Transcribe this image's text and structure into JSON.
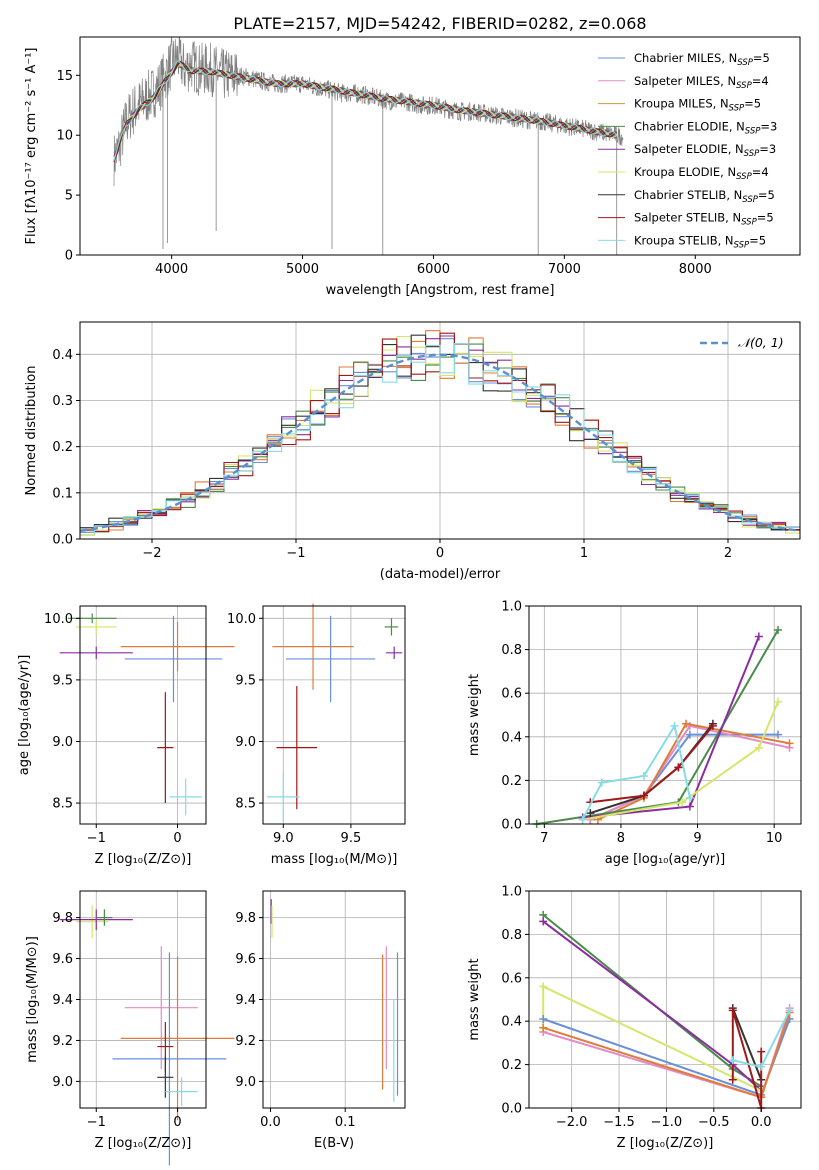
{
  "title": "PLATE=2157, MJD=54242, FIBERID=0282, z=0.068",
  "chart_data": [
    {
      "type": "line",
      "id": "spectrum",
      "xlabel": "wavelength [Angstrom, rest frame]",
      "ylabel": "Flux [fλ10⁻¹⁷ erg cm⁻² s⁻¹ A⁻¹]",
      "xlim": [
        3300,
        8800
      ],
      "ylim": [
        0,
        18.2
      ],
      "x_ticks": [
        4000,
        5000,
        6000,
        7000,
        8000
      ],
      "y_ticks": [
        0,
        5,
        10,
        15
      ],
      "grid": false,
      "legend_position": "top-right",
      "data_series": {
        "name": "data",
        "color": "#808080",
        "x": [
          3560,
          3600,
          3650,
          3700,
          3750,
          3800,
          3850,
          3900,
          3950,
          4000,
          4050,
          4100,
          4150,
          4200,
          4300,
          4400,
          4500,
          4600,
          4700,
          4800,
          4900,
          5000,
          5100,
          5200,
          5300,
          5400,
          5500,
          5600,
          5700,
          5800,
          5900,
          6000,
          6100,
          6200,
          6300,
          6400,
          6500,
          6600,
          6700,
          6800,
          6900,
          7000,
          7100,
          7200,
          7300,
          7400,
          7450
        ],
        "y": [
          8.0,
          9.0,
          11.0,
          12.0,
          12.5,
          13.0,
          13.5,
          14.0,
          15.0,
          16.0,
          16.5,
          15.5,
          16.0,
          15.5,
          15.5,
          15.0,
          15.0,
          14.8,
          14.5,
          14.3,
          14.3,
          14.3,
          14.0,
          13.8,
          13.5,
          13.5,
          13.3,
          13.0,
          12.8,
          12.8,
          12.5,
          12.5,
          12.2,
          12.0,
          12.0,
          11.8,
          11.6,
          11.5,
          11.3,
          11.2,
          11.0,
          10.8,
          10.6,
          10.4,
          10.2,
          10.0,
          9.9
        ]
      },
      "models_x": [
        3560,
        3650,
        3750,
        3850,
        3950,
        4050,
        4150,
        4300,
        4450,
        4600,
        4800,
        5000,
        5200,
        5400,
        5600,
        5800,
        6000,
        6200,
        6400,
        6600,
        6800,
        7000,
        7200,
        7400
      ],
      "models_y": [
        8.0,
        10.8,
        12.2,
        13.0,
        14.5,
        16.0,
        15.4,
        15.3,
        15.0,
        14.7,
        14.3,
        14.3,
        13.9,
        13.5,
        13.1,
        12.8,
        12.5,
        12.1,
        11.8,
        11.5,
        11.2,
        10.8,
        10.4,
        10.0
      ],
      "series": [
        {
          "name": "Chabrier MILES, N",
          "sub": "SSP",
          "suffix": "=5",
          "color": "#6a8fd8"
        },
        {
          "name": "Salpeter MILES, N",
          "sub": "SSP",
          "suffix": "=4",
          "color": "#e38bc7"
        },
        {
          "name": "Kroupa MILES, N",
          "sub": "SSP",
          "suffix": "=5",
          "color": "#c89a3c"
        },
        {
          "name": "Chabrier ELODIE, N",
          "sub": "SSP",
          "suffix": "=3",
          "color": "#4b8b4b"
        },
        {
          "name": "Salpeter ELODIE, N",
          "sub": "SSP",
          "suffix": "=3",
          "color": "#8b2ca0"
        },
        {
          "name": "Kroupa ELODIE, N",
          "sub": "SSP",
          "suffix": "=4",
          "color": "#d5e66a"
        },
        {
          "name": "Chabrier STELIB, N",
          "sub": "SSP",
          "suffix": "=5",
          "color": "#333333"
        },
        {
          "name": "Salpeter STELIB, N",
          "sub": "SSP",
          "suffix": "=5",
          "color": "#a01818"
        },
        {
          "name": "Kroupa STELIB, N",
          "sub": "SSP",
          "suffix": "=5",
          "color": "#86dce6"
        }
      ]
    },
    {
      "type": "line",
      "id": "residual-histogram",
      "xlabel": "(data-model)/error",
      "ylabel": "Normed distribution",
      "xlim": [
        -2.5,
        2.5
      ],
      "ylim": [
        0,
        0.47
      ],
      "x_ticks": [
        -2,
        -1,
        0,
        1,
        2
      ],
      "y_ticks": [
        0.0,
        0.1,
        0.2,
        0.3,
        0.4
      ],
      "grid": true,
      "legend_position": "top-right",
      "legend_label": "𝒩(0, 1)",
      "gaussian": {
        "mu": 0,
        "sigma": 1,
        "color": "#5b8fd0"
      },
      "bin_width": 0.1,
      "histogram_colors": [
        "#6a8fd8",
        "#e07b39",
        "#4b8b4b",
        "#8b2ca0",
        "#d5e66a",
        "#333333",
        "#a01818",
        "#86dce6"
      ]
    },
    {
      "type": "scatter",
      "id": "age-vs-metallicity",
      "xlabel": "Z [log₁₀(Z/Z⊙)]",
      "ylabel": "age  [log₁₀(age/yr)]",
      "xlim": [
        -1.2,
        0.35
      ],
      "ylim": [
        8.33,
        10.1
      ],
      "x_ticks": [
        -1,
        0
      ],
      "y_ticks": [
        8.5,
        9.0,
        9.5,
        10.0
      ],
      "grid": true,
      "points": [
        {
          "x": -1.05,
          "y": 10.0,
          "xerr": 0.3,
          "yerr": 0.04,
          "color": "#4b8b4b"
        },
        {
          "x": -1.0,
          "y": 9.93,
          "xerr": 0.25,
          "yerr": 0.06,
          "color": "#d5e66a"
        },
        {
          "x": -1.0,
          "y": 9.72,
          "xerr": 0.45,
          "yerr": 0.05,
          "color": "#8b2ca0"
        },
        {
          "x": 0.0,
          "y": 9.77,
          "xerr": 0.7,
          "yerr": 0.2,
          "color": "#e07b39"
        },
        {
          "x": -0.05,
          "y": 9.67,
          "xerr": 0.6,
          "yerr": 0.35,
          "color": "#6a8fd8"
        },
        {
          "x": -0.15,
          "y": 8.95,
          "xerr": 0.1,
          "yerr": 0.45,
          "color": "#a01818"
        },
        {
          "x": 0.1,
          "y": 8.55,
          "xerr": 0.2,
          "yerr": 0.15,
          "color": "#86dce6"
        }
      ]
    },
    {
      "type": "scatter",
      "id": "age-vs-mass",
      "xlabel": "mass [log₁₀(M/M⊙)]",
      "ylabel": "",
      "xlim": [
        8.85,
        9.9
      ],
      "ylim": [
        8.33,
        10.1
      ],
      "x_ticks": [
        9.0,
        9.5
      ],
      "y_ticks": [
        8.5,
        9.0,
        9.5,
        10.0
      ],
      "grid": true,
      "points": [
        {
          "x": 9.8,
          "y": 9.93,
          "xerr": 0.05,
          "yerr": 0.07,
          "color": "#4b8b4b"
        },
        {
          "x": 9.82,
          "y": 9.72,
          "xerr": 0.06,
          "yerr": 0.05,
          "color": "#8b2ca0"
        },
        {
          "x": 9.22,
          "y": 9.77,
          "xerr": 0.3,
          "yerr": 0.35,
          "color": "#e07b39"
        },
        {
          "x": 9.35,
          "y": 9.67,
          "xerr": 0.33,
          "yerr": 0.35,
          "color": "#6a8fd8"
        },
        {
          "x": 9.1,
          "y": 8.95,
          "xerr": 0.15,
          "yerr": 0.5,
          "color": "#a01818"
        },
        {
          "x": 9.0,
          "y": 8.55,
          "xerr": 0.12,
          "yerr": 0.2,
          "color": "#86dce6"
        }
      ]
    },
    {
      "type": "line",
      "id": "mass-weight-vs-age",
      "xlabel": "age  [log₁₀(age/yr)]",
      "ylabel": "mass weight",
      "xlim": [
        6.8,
        10.35
      ],
      "ylim": [
        0,
        1
      ],
      "x_ticks": [
        7,
        8,
        9,
        10
      ],
      "y_ticks": [
        0.0,
        0.2,
        0.4,
        0.6,
        0.8,
        1.0
      ],
      "grid": true,
      "series": [
        {
          "color": "#6a8fd8",
          "x": [
            7.6,
            8.3,
            8.9,
            10.05
          ],
          "y": [
            0.02,
            0.13,
            0.41,
            0.41
          ]
        },
        {
          "color": "#e38bc7",
          "x": [
            7.6,
            8.3,
            8.9,
            10.2
          ],
          "y": [
            0.02,
            0.13,
            0.45,
            0.35
          ]
        },
        {
          "color": "#e07b39",
          "x": [
            7.7,
            8.3,
            8.85,
            10.2
          ],
          "y": [
            0.02,
            0.12,
            0.46,
            0.37
          ]
        },
        {
          "color": "#4b8b4b",
          "x": [
            6.9,
            8.75,
            10.05
          ],
          "y": [
            0.0,
            0.1,
            0.89
          ]
        },
        {
          "color": "#8b2ca0",
          "x": [
            7.5,
            8.9,
            9.8
          ],
          "y": [
            0.03,
            0.08,
            0.86
          ]
        },
        {
          "color": "#d5e66a",
          "x": [
            7.5,
            8.8,
            9.8,
            10.05
          ],
          "y": [
            0.02,
            0.1,
            0.35,
            0.56
          ]
        },
        {
          "color": "#333333",
          "x": [
            7.6,
            8.3,
            8.75,
            9.2
          ],
          "y": [
            0.05,
            0.13,
            0.26,
            0.46
          ]
        },
        {
          "color": "#a01818",
          "x": [
            7.6,
            8.3,
            8.75,
            9.2
          ],
          "y": [
            0.1,
            0.13,
            0.26,
            0.45
          ]
        },
        {
          "color": "#86dce6",
          "x": [
            7.5,
            7.75,
            8.3,
            8.7,
            8.9
          ],
          "y": [
            0.02,
            0.19,
            0.22,
            0.45,
            0.12
          ]
        }
      ]
    },
    {
      "type": "scatter",
      "id": "mass-vs-metallicity",
      "xlabel": "Z [log₁₀(Z/Z⊙)]",
      "ylabel": "mass [log₁₀(M/M⊙)]",
      "xlim": [
        -1.2,
        0.35
      ],
      "ylim": [
        8.87,
        9.93
      ],
      "x_ticks": [
        -1,
        0
      ],
      "y_ticks": [
        9.0,
        9.2,
        9.4,
        9.6,
        9.8
      ],
      "grid": true,
      "points": [
        {
          "x": -1.05,
          "y": 9.78,
          "xerr": 0.2,
          "yerr": 0.08,
          "color": "#d5e66a"
        },
        {
          "x": -1.0,
          "y": 9.79,
          "xerr": 0.45,
          "yerr": 0.05,
          "color": "#8b2ca0"
        },
        {
          "x": -0.9,
          "y": 9.8,
          "xerr": 0.1,
          "yerr": 0.04,
          "color": "#4b8b4b"
        },
        {
          "x": -0.2,
          "y": 9.36,
          "xerr": 0.45,
          "yerr": 0.3,
          "color": "#e38bc7"
        },
        {
          "x": 0.0,
          "y": 9.21,
          "xerr": 0.7,
          "yerr": 0.4,
          "color": "#e07b39"
        },
        {
          "x": -0.1,
          "y": 9.11,
          "xerr": 0.7,
          "yerr": 0.52,
          "color": "#6a8fd8"
        },
        {
          "x": -0.15,
          "y": 9.17,
          "xerr": 0.1,
          "yerr": 0.12,
          "color": "#a01818"
        },
        {
          "x": -0.15,
          "y": 9.02,
          "xerr": 0.1,
          "yerr": 0.1,
          "color": "#333333"
        },
        {
          "x": 0.05,
          "y": 8.95,
          "xerr": 0.2,
          "yerr": 0.07,
          "color": "#86dce6"
        }
      ]
    },
    {
      "type": "scatter",
      "id": "mass-vs-extinction",
      "xlabel": "E(B-V)",
      "ylabel": "",
      "xlim": [
        -0.01,
        0.18
      ],
      "ylim": [
        8.87,
        9.93
      ],
      "x_ticks": [
        0.0,
        0.1
      ],
      "y_ticks": [
        9.0,
        9.2,
        9.4,
        9.6,
        9.8
      ],
      "grid": true,
      "points": [
        {
          "x": 0.001,
          "y": 9.83,
          "xerr": 0,
          "yerr": 0.06,
          "color": "#8b2ca0"
        },
        {
          "x": 0.002,
          "y": 9.78,
          "xerr": 0,
          "yerr": 0.08,
          "color": "#d5e66a"
        },
        {
          "x": 0.15,
          "y": 9.29,
          "xerr": 0,
          "yerr": 0.33,
          "color": "#e07b39"
        },
        {
          "x": 0.155,
          "y": 9.36,
          "xerr": 0,
          "yerr": 0.3,
          "color": "#e38bc7"
        },
        {
          "x": 0.165,
          "y": 9.15,
          "xerr": 0,
          "yerr": 0.25,
          "color": "#86dce6"
        },
        {
          "x": 0.17,
          "y": 9.28,
          "xerr": 0,
          "yerr": 0.35,
          "color": "#6a8fd8"
        }
      ]
    },
    {
      "type": "line",
      "id": "mass-weight-vs-metallicity",
      "xlabel": "Z [log₁₀(Z/Z⊙)]",
      "ylabel": "mass weight",
      "xlim": [
        -2.45,
        0.42
      ],
      "ylim": [
        0,
        1
      ],
      "x_ticks": [
        -2.0,
        -1.5,
        -1.0,
        -0.5,
        0.0
      ],
      "y_ticks": [
        0.0,
        0.2,
        0.4,
        0.6,
        0.8,
        1.0
      ],
      "grid": true,
      "series": [
        {
          "color": "#4b8b4b",
          "x": [
            -2.3,
            -0.3,
            0.0
          ],
          "y": [
            0.89,
            0.18,
            0.1
          ]
        },
        {
          "color": "#8b2ca0",
          "x": [
            -2.3,
            -0.3,
            0.0
          ],
          "y": [
            0.86,
            0.2,
            0.08
          ]
        },
        {
          "color": "#d5e66a",
          "x": [
            -2.3,
            -2.3,
            0.0
          ],
          "y": [
            0.35,
            0.56,
            0.08
          ]
        },
        {
          "color": "#6a8fd8",
          "x": [
            -2.3,
            0.0,
            0.3
          ],
          "y": [
            0.41,
            0.06,
            0.41
          ]
        },
        {
          "color": "#e38bc7",
          "x": [
            -2.3,
            0.0,
            0.3
          ],
          "y": [
            0.35,
            0.05,
            0.46
          ]
        },
        {
          "color": "#e07b39",
          "x": [
            -2.3,
            0.0,
            0.3
          ],
          "y": [
            0.37,
            0.05,
            0.44
          ]
        },
        {
          "color": "#333333",
          "x": [
            -0.3,
            0.0
          ],
          "y": [
            0.46,
            0.13
          ]
        },
        {
          "color": "#a01818",
          "x": [
            -0.3,
            -0.3,
            0.0,
            0.0
          ],
          "y": [
            0.13,
            0.45,
            0.0,
            0.26
          ]
        },
        {
          "color": "#86dce6",
          "x": [
            -0.3,
            0.0,
            0.3
          ],
          "y": [
            0.22,
            0.19,
            0.45
          ]
        }
      ]
    }
  ]
}
